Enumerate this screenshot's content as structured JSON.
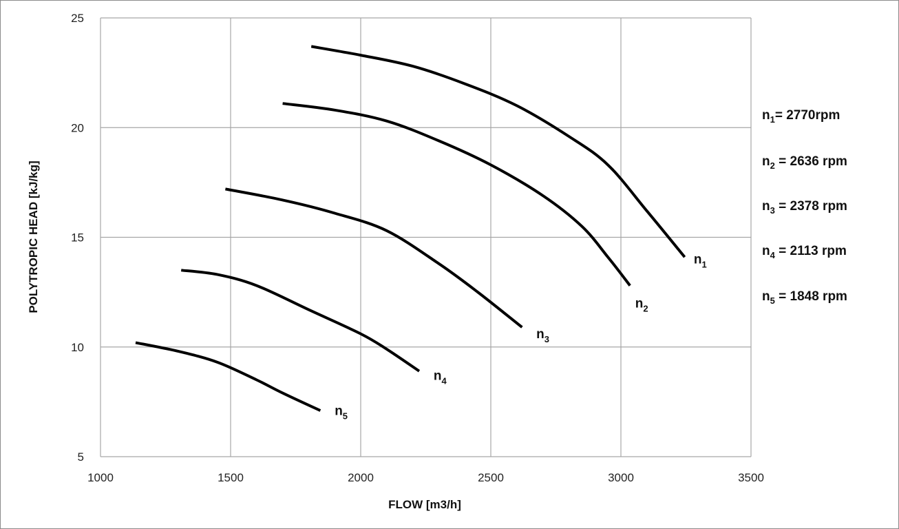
{
  "chart_data": {
    "type": "line",
    "title": "",
    "xlabel": "FLOW [m3/h]",
    "ylabel": "POLYTROPIC HEAD [kJ/kg]",
    "xlim": [
      1000,
      3500
    ],
    "ylim": [
      5,
      25
    ],
    "x_ticks": [
      "1000",
      "1500",
      "2000",
      "2500",
      "3000",
      "3500"
    ],
    "y_ticks": [
      "5",
      "10",
      "15",
      "20",
      "25"
    ],
    "grid": true,
    "series": [
      {
        "name": "n1",
        "color": "#000000",
        "x": [
          1810,
          2000,
          2200,
          2400,
          2600,
          2800,
          2950,
          3100,
          3245
        ],
        "y": [
          23.7,
          23.3,
          22.8,
          22.0,
          21.0,
          19.6,
          18.3,
          16.2,
          14.1
        ]
      },
      {
        "name": "n2",
        "color": "#000000",
        "x": [
          1700,
          1900,
          2100,
          2300,
          2500,
          2700,
          2850,
          2950,
          3035
        ],
        "y": [
          21.1,
          20.8,
          20.3,
          19.4,
          18.3,
          16.9,
          15.5,
          14.1,
          12.8
        ]
      },
      {
        "name": "n3",
        "color": "#000000",
        "x": [
          1480,
          1700,
          1900,
          2100,
          2300,
          2450,
          2620
        ],
        "y": [
          17.2,
          16.7,
          16.1,
          15.3,
          13.8,
          12.5,
          10.9
        ]
      },
      {
        "name": "n4",
        "color": "#000000",
        "x": [
          1310,
          1450,
          1600,
          1800,
          2000,
          2100,
          2225
        ],
        "y": [
          13.5,
          13.3,
          12.8,
          11.7,
          10.6,
          9.9,
          8.9
        ]
      },
      {
        "name": "n5",
        "color": "#000000",
        "x": [
          1135,
          1300,
          1450,
          1600,
          1700,
          1845
        ],
        "y": [
          10.2,
          9.8,
          9.3,
          8.5,
          7.9,
          7.1
        ]
      }
    ],
    "curve_labels": [
      {
        "base": "n",
        "sub": "1",
        "x": 3280,
        "y": 13.8
      },
      {
        "base": "n",
        "sub": "2",
        "x": 3055,
        "y": 11.8
      },
      {
        "base": "n",
        "sub": "3",
        "x": 2675,
        "y": 10.4
      },
      {
        "base": "n",
        "sub": "4",
        "x": 2280,
        "y": 8.5
      },
      {
        "base": "n",
        "sub": "5",
        "x": 1900,
        "y": 6.9
      }
    ],
    "legend": {
      "placement": "right",
      "entries": [
        {
          "base": "n",
          "sub": "1",
          "text": "= 2770rpm"
        },
        {
          "base": "n",
          "sub": "2",
          "text": " = 2636 rpm"
        },
        {
          "base": "n",
          "sub": "3",
          "text": " = 2378 rpm"
        },
        {
          "base": "n",
          "sub": "4",
          "text": " = 2113 rpm"
        },
        {
          "base": "n",
          "sub": "5",
          "text": " = 1848 rpm"
        }
      ]
    }
  }
}
